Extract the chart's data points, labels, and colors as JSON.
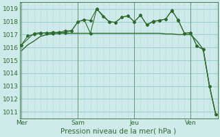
{
  "title": "Pression niveau de la mer( hPa )",
  "bg_color": "#ceeaea",
  "grid_minor_color": "#b8dcdc",
  "grid_major_color": "#9ecece",
  "line_color": "#2d6a2d",
  "ylim": [
    1010.5,
    1019.5
  ],
  "yticks": [
    1011,
    1012,
    1013,
    1014,
    1015,
    1016,
    1017,
    1018,
    1019
  ],
  "xlim": [
    -0.3,
    31.3
  ],
  "day_labels": [
    "Mer",
    "Sam",
    "Jeu",
    "Ven"
  ],
  "day_positions": [
    0,
    9,
    18,
    27
  ],
  "line1_x": [
    0,
    1,
    2,
    3,
    4,
    5,
    6,
    7,
    8,
    9,
    10,
    11,
    12,
    13,
    14,
    15,
    16,
    17,
    18,
    19,
    20,
    21,
    22,
    23,
    24,
    25,
    26,
    27,
    28,
    29,
    30,
    31
  ],
  "line1_y": [
    1015.75,
    1016.2,
    1016.5,
    1016.85,
    1017.0,
    1017.05,
    1017.1,
    1017.1,
    1017.1,
    1017.1,
    1017.1,
    1017.1,
    1017.1,
    1017.1,
    1017.1,
    1017.1,
    1017.1,
    1017.1,
    1017.1,
    1017.1,
    1017.1,
    1017.1,
    1017.1,
    1017.05,
    1017.05,
    1017.0,
    1017.0,
    1017.0,
    1016.5,
    1015.85,
    1013.0,
    1010.8
  ],
  "line2_x": [
    0,
    1,
    2,
    3,
    4,
    5,
    6,
    7,
    8,
    9,
    10,
    11,
    12,
    13,
    14,
    15,
    16,
    17,
    18,
    19,
    20,
    21,
    22,
    23,
    24,
    25,
    26,
    27,
    28,
    29,
    30,
    31
  ],
  "line2_y": [
    1016.2,
    1016.9,
    1017.0,
    1017.1,
    1017.15,
    1017.1,
    1017.2,
    1017.15,
    1017.3,
    1018.0,
    1018.15,
    1018.1,
    1019.0,
    1018.4,
    1018.0,
    1017.95,
    1018.35,
    1018.45,
    1018.0,
    1018.5,
    1017.75,
    1018.0,
    1018.1,
    1018.2,
    1018.9,
    1018.1,
    1017.1,
    1017.15,
    1016.1,
    1015.85,
    1013.0,
    1010.8
  ],
  "line3_x": [
    0,
    2,
    3,
    4,
    5,
    6,
    7,
    8,
    9,
    10,
    11,
    12,
    14,
    15,
    16,
    17,
    18,
    19,
    20,
    21,
    22,
    23,
    24,
    25,
    26,
    27,
    28,
    29,
    30,
    31
  ],
  "line3_y": [
    1016.2,
    1017.1,
    1017.15,
    1017.1,
    1017.2,
    1017.15,
    1017.3,
    1017.3,
    1018.0,
    1018.15,
    1017.1,
    1019.0,
    1018.0,
    1017.95,
    1018.35,
    1018.45,
    1018.0,
    1018.5,
    1017.75,
    1018.05,
    1018.1,
    1018.2,
    1018.85,
    1018.15,
    1017.1,
    1017.15,
    1016.1,
    1015.85,
    1013.0,
    1010.8
  ]
}
